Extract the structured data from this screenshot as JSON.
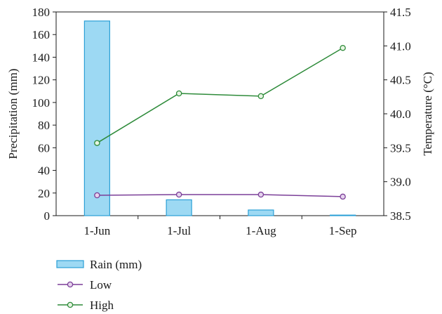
{
  "chart_data": {
    "type": "bar",
    "categories": [
      "1-Jun",
      "1-Jul",
      "1-Aug",
      "1-Sep"
    ],
    "series": [
      {
        "name": "Rain (mm)",
        "type": "bar",
        "axis": "left",
        "values": [
          172,
          14,
          5,
          0.5
        ]
      },
      {
        "name": "Low",
        "type": "line",
        "axis": "right",
        "values": [
          38.8,
          38.81,
          38.81,
          38.78
        ]
      },
      {
        "name": "High",
        "type": "line",
        "axis": "right",
        "values": [
          39.57,
          40.3,
          40.26,
          40.97
        ]
      }
    ],
    "ylabel": "Precipitation (mm)",
    "y2label": "Temperature (°C)",
    "ylim": [
      0,
      180
    ],
    "y2lim": [
      38.5,
      41.5
    ],
    "yticks": [
      "0",
      "20",
      "40",
      "60",
      "80",
      "100",
      "120",
      "140",
      "160",
      "180"
    ],
    "y2ticks": [
      "38.5",
      "39.0",
      "39.5",
      "40.0",
      "40.5",
      "41.0",
      "41.5"
    ],
    "colors": {
      "bar_fill": "#9dd9f3",
      "bar_stroke": "#2a9fd6",
      "low_line": "#7b3f98",
      "low_marker_fill": "#e6d3ee",
      "high_line": "#2e8b3a",
      "high_marker_fill": "#e7f5e2"
    },
    "legend_position": "bottom-left",
    "grid": false
  }
}
